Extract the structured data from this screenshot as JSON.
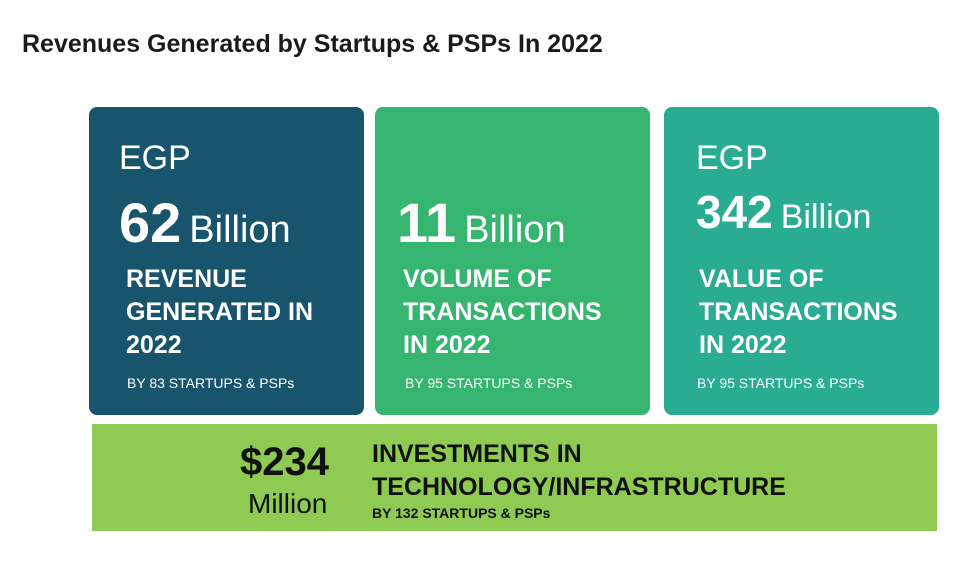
{
  "title": "Revenues Generated by Startups & PSPs In 2022",
  "cards": [
    {
      "currency": "EGP",
      "number": "62",
      "unit": "Billion",
      "description": "REVENUE GENERATED IN 2022",
      "subtext": "BY 83 STARTUPS & PSPs",
      "color": "#18556c"
    },
    {
      "currency": "",
      "number": "11",
      "unit": "Billion",
      "description": "VOLUME OF TRANSACTIONS IN 2022",
      "subtext": "BY 95 STARTUPS & PSPs",
      "color": "#36b571"
    },
    {
      "currency": "EGP",
      "number": "342",
      "unit": "Billion",
      "description": "VALUE OF TRANSACTIONS IN 2022",
      "subtext": "BY 95 STARTUPS & PSPs",
      "color": "#2aac93"
    }
  ],
  "banner": {
    "amount": "$234",
    "unit": "Million",
    "headline": "INVESTMENTS IN TECHNOLOGY/INFRASTRUCTURE",
    "subtext": "BY 132 STARTUPS & PSPs",
    "color": "#8fca53"
  }
}
